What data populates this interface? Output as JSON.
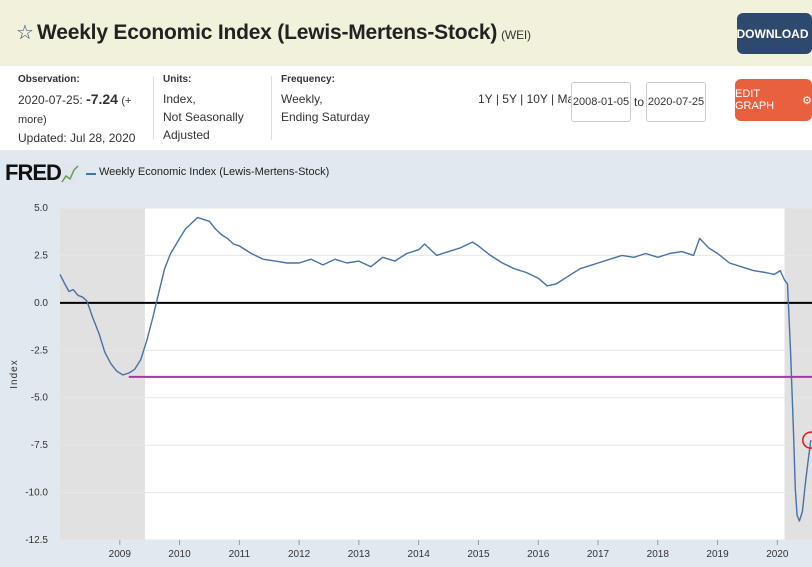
{
  "header": {
    "title": "Weekly Economic Index (Lewis-Mertens-Stock)",
    "series_id": "(WEI)",
    "download_label": "DOWNLOAD"
  },
  "meta": {
    "observation_label": "Observation:",
    "observation_date": "2020-07-25:",
    "observation_value": "-7.24",
    "observation_more": "(+ more)",
    "updated": "Updated: Jul 28, 2020",
    "units_label": "Units:",
    "units_line1": "Index,",
    "units_line2": "Not Seasonally Adjusted",
    "frequency_label": "Frequency:",
    "frequency_line1": "Weekly,",
    "frequency_line2": "Ending Saturday"
  },
  "controls": {
    "range_1y": "1Y",
    "range_5y": "5Y",
    "range_10y": "10Y",
    "range_max": "Max",
    "sep": "|",
    "start_date": "2008-01-05",
    "to_label": "to",
    "end_date": "2020-07-25",
    "edit_label": "EDIT GRAPH"
  },
  "logo": {
    "text": "FRED"
  },
  "colors": {
    "series": "#4572a7",
    "recession": "#e1e1e1",
    "hline": "#a03ca0",
    "marker": "#e02020",
    "edit": "#e9603f",
    "download": "#2d4a6e"
  },
  "chart_data": {
    "type": "line",
    "legend": "Weekly Economic Index (Lewis-Mertens-Stock)",
    "ylabel": "Index",
    "xlim": [
      2008.0,
      2020.58
    ],
    "ylim": [
      -12.5,
      5.0
    ],
    "yticks": [
      5.0,
      2.5,
      0.0,
      -2.5,
      -5.0,
      -7.5,
      -10.0,
      -12.5
    ],
    "ytick_labels": [
      "5.0",
      "2.5",
      "0.0",
      "-2.5",
      "-5.0",
      "-7.5",
      "-10.0",
      "-12.5"
    ],
    "xticks": [
      2009,
      2010,
      2011,
      2012,
      2013,
      2014,
      2015,
      2016,
      2017,
      2018,
      2019,
      2020
    ],
    "xtick_labels": [
      "2009",
      "2010",
      "2011",
      "2012",
      "2013",
      "2014",
      "2015",
      "2016",
      "2017",
      "2018",
      "2019",
      "2020"
    ],
    "recessions": [
      [
        2008.0,
        2009.42
      ],
      [
        2020.12,
        2020.58
      ]
    ],
    "hlines": [
      {
        "y": 0.0,
        "color": "#000000"
      },
      {
        "y": -3.9,
        "x_start": 2009.15,
        "color": "#a03ca0"
      }
    ],
    "highlight": {
      "x": 2020.56,
      "y": -7.24
    },
    "series": [
      {
        "name": "Weekly Economic Index (Lewis-Mertens-Stock)",
        "x": [
          2008.0,
          2008.08,
          2008.15,
          2008.22,
          2008.3,
          2008.38,
          2008.45,
          2008.55,
          2008.65,
          2008.75,
          2008.85,
          2008.95,
          2009.05,
          2009.15,
          2009.25,
          2009.35,
          2009.45,
          2009.55,
          2009.65,
          2009.75,
          2009.85,
          2010.0,
          2010.1,
          2010.2,
          2010.3,
          2010.4,
          2010.5,
          2010.6,
          2010.7,
          2010.8,
          2010.9,
          2011.0,
          2011.2,
          2011.4,
          2011.6,
          2011.8,
          2012.0,
          2012.2,
          2012.4,
          2012.6,
          2012.8,
          2013.0,
          2013.2,
          2013.4,
          2013.6,
          2013.8,
          2014.0,
          2014.1,
          2014.3,
          2014.5,
          2014.7,
          2014.9,
          2015.0,
          2015.2,
          2015.4,
          2015.6,
          2015.8,
          2016.0,
          2016.15,
          2016.3,
          2016.5,
          2016.7,
          2016.9,
          2017.0,
          2017.2,
          2017.4,
          2017.6,
          2017.8,
          2018.0,
          2018.2,
          2018.4,
          2018.6,
          2018.7,
          2018.85,
          2019.0,
          2019.2,
          2019.4,
          2019.6,
          2019.8,
          2019.95,
          2020.05,
          2020.12,
          2020.17,
          2020.22,
          2020.27,
          2020.3,
          2020.33,
          2020.37,
          2020.42,
          2020.47,
          2020.52,
          2020.56
        ],
        "y": [
          1.5,
          1.0,
          0.6,
          0.7,
          0.4,
          0.3,
          0.1,
          -0.8,
          -1.6,
          -2.6,
          -3.2,
          -3.6,
          -3.8,
          -3.7,
          -3.5,
          -3.0,
          -2.0,
          -0.8,
          0.5,
          1.8,
          2.6,
          3.4,
          3.9,
          4.2,
          4.5,
          4.4,
          4.3,
          3.9,
          3.6,
          3.4,
          3.1,
          3.0,
          2.6,
          2.3,
          2.2,
          2.1,
          2.1,
          2.3,
          2.0,
          2.3,
          2.1,
          2.2,
          1.9,
          2.4,
          2.2,
          2.6,
          2.8,
          3.1,
          2.5,
          2.7,
          2.9,
          3.2,
          3.0,
          2.5,
          2.1,
          1.8,
          1.6,
          1.3,
          0.9,
          1.0,
          1.4,
          1.8,
          2.0,
          2.1,
          2.3,
          2.5,
          2.4,
          2.6,
          2.4,
          2.6,
          2.7,
          2.5,
          3.4,
          2.9,
          2.6,
          2.1,
          1.9,
          1.7,
          1.6,
          1.5,
          1.7,
          1.2,
          1.0,
          -2.5,
          -6.8,
          -9.8,
          -11.2,
          -11.5,
          -11.0,
          -9.5,
          -8.2,
          -7.24
        ]
      }
    ]
  }
}
